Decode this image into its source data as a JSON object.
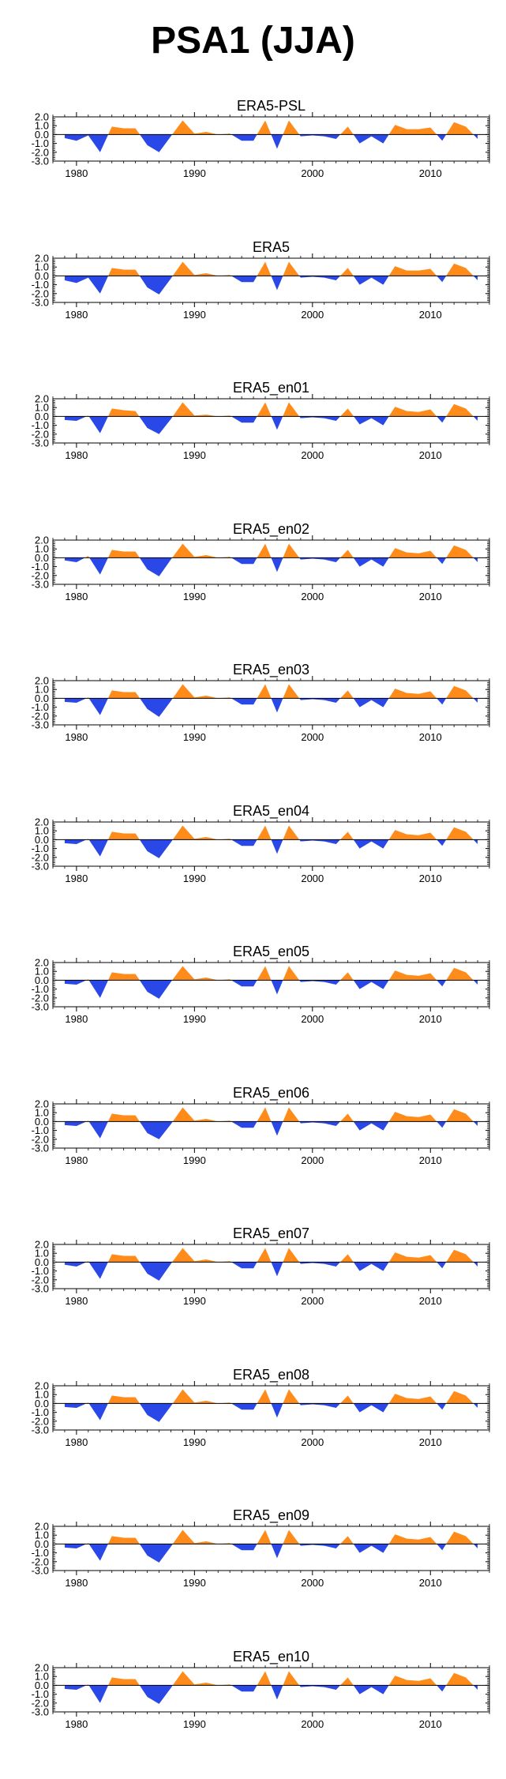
{
  "title": "PSA1 (JJA)",
  "colors": {
    "positive": "#FF8C1A",
    "negative": "#2A47E8",
    "axis": "#000000"
  },
  "chart_data": {
    "type": "area",
    "title": "PSA1 (JJA)",
    "x": [
      1979,
      1980,
      1981,
      1982,
      1983,
      1984,
      1985,
      1986,
      1987,
      1988,
      1989,
      1990,
      1991,
      1992,
      1993,
      1994,
      1995,
      1996,
      1997,
      1998,
      1999,
      2000,
      2001,
      2002,
      2003,
      2004,
      2005,
      2006,
      2007,
      2008,
      2009,
      2010,
      2011,
      2012,
      2013,
      2014
    ],
    "xlim": [
      1978,
      2015
    ],
    "ylim": [
      -3.0,
      2.0
    ],
    "x_ticks": [
      1980,
      1990,
      2000,
      2010
    ],
    "x_tick_labels": [
      "1980",
      "1990",
      "2000",
      "2010"
    ],
    "y_ticks": [
      -3.0,
      -2.0,
      -1.0,
      0.0,
      1.0,
      2.0
    ],
    "y_tick_labels": [
      "-3.0",
      "-2.0",
      "-1.0",
      "0.0",
      "1.0",
      "2.0"
    ],
    "fill_above_zero": "orange",
    "fill_below_zero": "blue",
    "panels": [
      {
        "name": "ERA5-PSL",
        "values": [
          -0.4,
          -0.7,
          -0.1,
          -2.0,
          0.9,
          0.7,
          0.7,
          -1.2,
          -2.0,
          -0.2,
          1.6,
          0.1,
          0.3,
          0.0,
          0.1,
          -0.7,
          -0.7,
          1.6,
          -1.6,
          1.6,
          -0.2,
          -0.1,
          -0.2,
          -0.5,
          0.9,
          -1.0,
          -0.2,
          -1.0,
          1.1,
          0.6,
          0.6,
          0.8,
          -0.7,
          1.4,
          0.9,
          -0.5
        ]
      },
      {
        "name": "ERA5",
        "values": [
          -0.5,
          -0.8,
          -0.2,
          -2.0,
          0.9,
          0.7,
          0.7,
          -1.3,
          -2.1,
          -0.3,
          1.6,
          0.1,
          0.3,
          0.0,
          0.1,
          -0.7,
          -0.7,
          1.6,
          -1.6,
          1.6,
          -0.2,
          -0.1,
          -0.2,
          -0.5,
          0.9,
          -1.0,
          -0.2,
          -1.0,
          1.1,
          0.6,
          0.6,
          0.8,
          -0.7,
          1.4,
          0.9,
          -0.5
        ]
      },
      {
        "name": "ERA5_en01",
        "values": [
          -0.4,
          -0.5,
          0.1,
          -1.9,
          0.9,
          0.7,
          0.6,
          -1.3,
          -2.0,
          -0.3,
          1.6,
          0.1,
          0.2,
          0.0,
          0.1,
          -0.7,
          -0.7,
          1.6,
          -1.5,
          1.6,
          -0.2,
          -0.1,
          -0.2,
          -0.5,
          0.9,
          -0.9,
          -0.2,
          -1.0,
          1.1,
          0.6,
          0.5,
          0.8,
          -0.7,
          1.4,
          0.9,
          -0.5
        ]
      },
      {
        "name": "ERA5_en02",
        "values": [
          -0.3,
          -0.5,
          0.2,
          -1.9,
          0.9,
          0.7,
          0.7,
          -1.3,
          -2.1,
          -0.2,
          1.6,
          0.1,
          0.3,
          0.0,
          0.1,
          -0.7,
          -0.7,
          1.6,
          -1.6,
          1.6,
          -0.2,
          -0.1,
          -0.2,
          -0.5,
          0.9,
          -1.0,
          -0.2,
          -1.0,
          1.1,
          0.6,
          0.5,
          0.8,
          -0.7,
          1.4,
          0.9,
          -0.5
        ]
      },
      {
        "name": "ERA5_en03",
        "values": [
          -0.4,
          -0.5,
          0.1,
          -1.9,
          0.9,
          0.7,
          0.7,
          -1.2,
          -2.1,
          -0.3,
          1.6,
          0.1,
          0.3,
          0.0,
          0.1,
          -0.7,
          -0.7,
          1.6,
          -1.6,
          1.6,
          -0.2,
          -0.1,
          -0.2,
          -0.5,
          0.9,
          -1.0,
          -0.2,
          -1.0,
          1.1,
          0.6,
          0.5,
          0.8,
          -0.7,
          1.4,
          0.9,
          -0.5
        ]
      },
      {
        "name": "ERA5_en04",
        "values": [
          -0.4,
          -0.5,
          0.1,
          -1.9,
          0.9,
          0.7,
          0.7,
          -1.3,
          -2.1,
          -0.3,
          1.6,
          0.1,
          0.3,
          0.0,
          0.1,
          -0.7,
          -0.7,
          1.6,
          -1.6,
          1.6,
          -0.2,
          -0.1,
          -0.2,
          -0.5,
          0.9,
          -1.0,
          -0.2,
          -1.0,
          1.1,
          0.6,
          0.5,
          0.8,
          -0.7,
          1.4,
          0.9,
          -0.5
        ]
      },
      {
        "name": "ERA5_en05",
        "values": [
          -0.4,
          -0.5,
          0.1,
          -2.0,
          0.9,
          0.7,
          0.7,
          -1.3,
          -2.1,
          -0.2,
          1.6,
          0.1,
          0.3,
          0.0,
          0.1,
          -0.7,
          -0.7,
          1.6,
          -1.6,
          1.6,
          -0.2,
          -0.1,
          -0.2,
          -0.5,
          0.9,
          -1.0,
          -0.2,
          -1.0,
          1.1,
          0.6,
          0.5,
          0.8,
          -0.7,
          1.4,
          0.9,
          -0.5
        ]
      },
      {
        "name": "ERA5_en06",
        "values": [
          -0.4,
          -0.5,
          0.1,
          -1.9,
          0.9,
          0.7,
          0.7,
          -1.3,
          -2.0,
          -0.3,
          1.6,
          0.1,
          0.3,
          0.0,
          0.1,
          -0.7,
          -0.7,
          1.6,
          -1.6,
          1.6,
          -0.2,
          -0.1,
          -0.2,
          -0.5,
          0.9,
          -1.0,
          -0.2,
          -1.0,
          1.1,
          0.6,
          0.5,
          0.8,
          -0.7,
          1.4,
          0.9,
          -0.5
        ]
      },
      {
        "name": "ERA5_en07",
        "values": [
          -0.3,
          -0.5,
          0.1,
          -1.9,
          0.9,
          0.7,
          0.7,
          -1.3,
          -2.1,
          -0.2,
          1.6,
          0.1,
          0.3,
          0.0,
          0.1,
          -0.7,
          -0.7,
          1.6,
          -1.6,
          1.6,
          -0.2,
          -0.1,
          -0.2,
          -0.5,
          0.9,
          -1.0,
          -0.2,
          -1.0,
          1.1,
          0.6,
          0.5,
          0.8,
          -0.7,
          1.4,
          0.9,
          -0.5
        ]
      },
      {
        "name": "ERA5_en08",
        "values": [
          -0.4,
          -0.5,
          0.1,
          -1.9,
          0.9,
          0.7,
          0.7,
          -1.3,
          -2.1,
          -0.3,
          1.6,
          0.1,
          0.3,
          0.0,
          0.1,
          -0.7,
          -0.7,
          1.6,
          -1.6,
          1.6,
          -0.2,
          -0.1,
          -0.2,
          -0.5,
          0.9,
          -1.0,
          -0.2,
          -1.0,
          1.1,
          0.6,
          0.5,
          0.8,
          -0.7,
          1.4,
          0.9,
          -0.5
        ]
      },
      {
        "name": "ERA5_en09",
        "values": [
          -0.4,
          -0.5,
          0.1,
          -1.9,
          0.9,
          0.7,
          0.7,
          -1.3,
          -2.1,
          -0.3,
          1.6,
          0.1,
          0.3,
          0.0,
          0.1,
          -0.7,
          -0.7,
          1.6,
          -1.6,
          1.6,
          -0.2,
          -0.1,
          -0.2,
          -0.5,
          0.9,
          -1.0,
          -0.2,
          -1.0,
          1.1,
          0.6,
          0.5,
          0.8,
          -0.7,
          1.4,
          0.9,
          -0.5
        ]
      },
      {
        "name": "ERA5_en10",
        "values": [
          -0.4,
          -0.5,
          0.1,
          -2.0,
          0.9,
          0.7,
          0.7,
          -1.3,
          -2.1,
          -0.3,
          1.6,
          0.1,
          0.3,
          0.0,
          0.1,
          -0.7,
          -0.7,
          1.6,
          -1.6,
          1.6,
          -0.2,
          -0.1,
          -0.2,
          -0.5,
          0.9,
          -1.0,
          -0.2,
          -1.0,
          1.1,
          0.6,
          0.5,
          0.8,
          -0.7,
          1.4,
          0.9,
          -0.5
        ]
      }
    ]
  }
}
